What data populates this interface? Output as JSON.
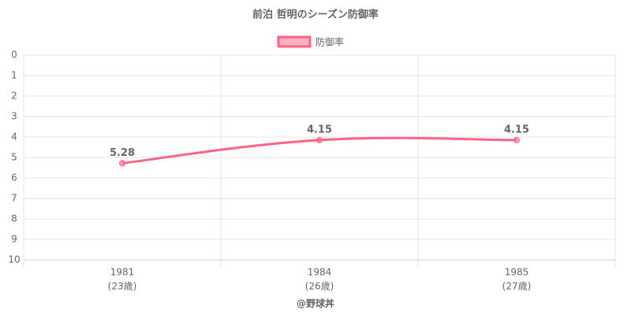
{
  "chart_data": {
    "type": "line",
    "title": "前泊 哲明のシーズン防御率",
    "categories": [
      [
        "1981",
        "(23歳)"
      ],
      [
        "1984",
        "(26歳)"
      ],
      [
        "1985",
        "(27歳)"
      ]
    ],
    "series": [
      {
        "name": "防御率",
        "color": "#ff6384",
        "values": [
          5.28,
          4.15,
          4.15
        ]
      }
    ],
    "ylim": [
      0,
      10
    ],
    "yticks": [
      0,
      1,
      2,
      3,
      4,
      5,
      6,
      7,
      8,
      9,
      10
    ],
    "yreverse": true,
    "grid": true,
    "source": "@野球丼"
  }
}
